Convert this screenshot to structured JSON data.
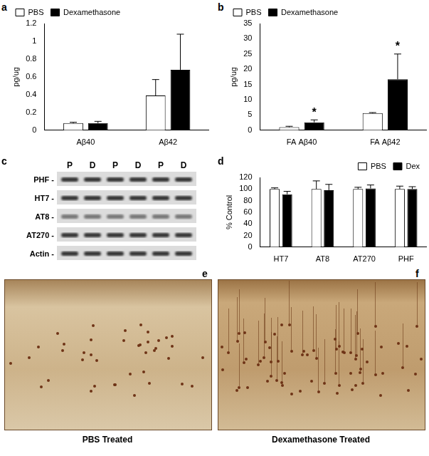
{
  "chart_data": [
    {
      "panel": "a",
      "type": "bar",
      "ylabel": "pg/ug",
      "categories": [
        "Aβ40",
        "Aβ42"
      ],
      "series": [
        {
          "name": "PBS",
          "color": "#ffffff",
          "values": [
            0.08,
            0.39
          ],
          "errors": [
            0.01,
            0.18
          ]
        },
        {
          "name": "Dexamethasone",
          "color": "#000000",
          "values": [
            0.08,
            0.68
          ],
          "errors": [
            0.02,
            0.4
          ]
        }
      ],
      "ylim": [
        0,
        1.2
      ],
      "yticks": [
        0,
        0.2,
        0.4,
        0.6,
        0.8,
        1,
        1.2
      ],
      "grid": false,
      "legend": "upper left"
    },
    {
      "panel": "b",
      "type": "bar",
      "ylabel": "pg/ug",
      "categories": [
        "FA Aβ40",
        "FA Aβ42"
      ],
      "series": [
        {
          "name": "PBS",
          "color": "#ffffff",
          "values": [
            1.0,
            5.6
          ],
          "errors": [
            0.3,
            0.2
          ]
        },
        {
          "name": "Dexamethasone",
          "color": "#000000",
          "values": [
            2.6,
            16.7
          ],
          "errors": [
            0.8,
            8.3
          ]
        }
      ],
      "annotations": [
        {
          "text": "*",
          "category": "FA Aβ40",
          "series": "Dexamethasone"
        },
        {
          "text": "*",
          "category": "FA Aβ42",
          "series": "Dexamethasone"
        }
      ],
      "ylim": [
        0,
        35
      ],
      "yticks": [
        0,
        5,
        10,
        15,
        20,
        25,
        30,
        35
      ],
      "grid": false,
      "legend": "upper left"
    },
    {
      "panel": "d",
      "type": "bar",
      "ylabel": "% Control",
      "categories": [
        "HT7",
        "AT8",
        "AT270",
        "PHF"
      ],
      "series": [
        {
          "name": "PBS",
          "color": "#ffffff",
          "values": [
            100,
            100,
            100,
            100
          ],
          "errors": [
            2,
            14,
            3,
            5
          ]
        },
        {
          "name": "Dex",
          "color": "#000000",
          "values": [
            91,
            98,
            101,
            100
          ],
          "errors": [
            5,
            10,
            6,
            4
          ]
        }
      ],
      "ylim": [
        0,
        120
      ],
      "yticks": [
        0,
        20,
        40,
        60,
        80,
        100,
        120
      ],
      "grid": false,
      "legend": "upper right"
    }
  ],
  "blot": {
    "panel": "c",
    "lanes": [
      "P",
      "D",
      "P",
      "D",
      "P",
      "D"
    ],
    "rows": [
      "PHF -",
      "HT7 -",
      "AT8 -",
      "AT270 -",
      "Actin -"
    ]
  },
  "images": [
    {
      "panel": "e",
      "caption": "PBS Treated"
    },
    {
      "panel": "f",
      "caption": "Dexamethasone Treated"
    }
  ]
}
